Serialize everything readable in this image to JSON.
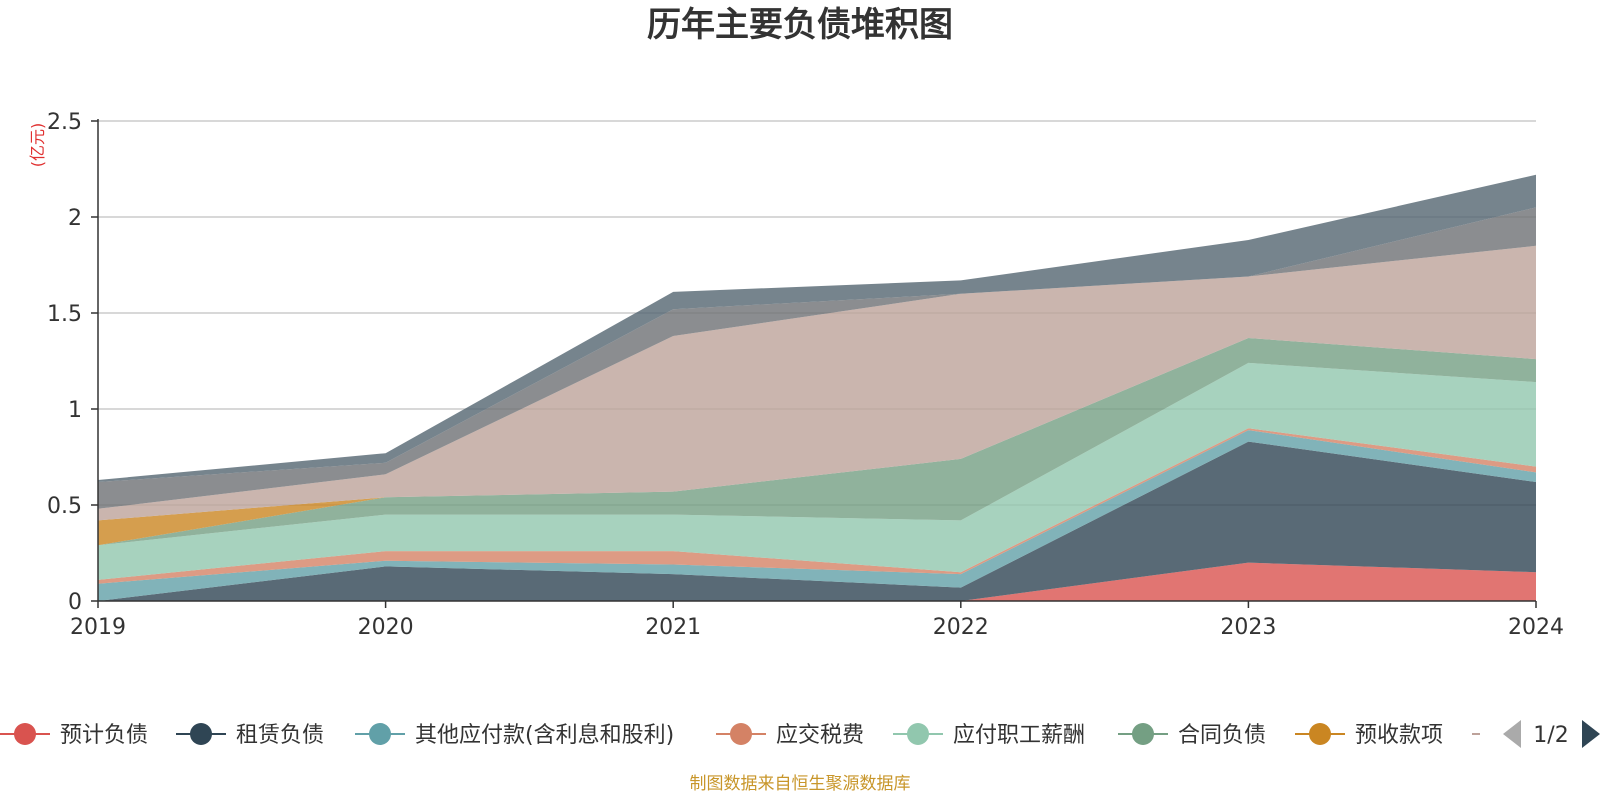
{
  "chart_data": {
    "type": "area",
    "stacked": true,
    "title": "历年主要负债堆积图",
    "unit": "(亿元)",
    "x": [
      "2019",
      "2020",
      "2021",
      "2022",
      "2023",
      "2024"
    ],
    "ylim": [
      0,
      2.5
    ],
    "yticks": [
      "0",
      "0.5",
      "1",
      "1.5",
      "2",
      "2.5"
    ],
    "ytick_values": [
      0,
      0.5,
      1,
      1.5,
      2,
      2.5
    ],
    "grid": true,
    "series": [
      {
        "name": "预计负债",
        "color": "#d9534f",
        "values": [
          0,
          0,
          0,
          0,
          0.2,
          0.15
        ]
      },
      {
        "name": "租赁负债",
        "color": "#2f4554",
        "values": [
          0,
          0.18,
          0.14,
          0.07,
          0.63,
          0.47
        ]
      },
      {
        "name": "其他应付款(含利息和股利)",
        "color": "#61a0a8",
        "values": [
          0.09,
          0.03,
          0.05,
          0.07,
          0.06,
          0.05
        ]
      },
      {
        "name": "应交税费",
        "color": "#d48265",
        "values": [
          0.02,
          0.05,
          0.07,
          0.01,
          0.01,
          0.03
        ]
      },
      {
        "name": "应付职工薪酬",
        "color": "#91c7ae",
        "values": [
          0.18,
          0.19,
          0.19,
          0.27,
          0.34,
          0.44
        ]
      },
      {
        "name": "合同负债",
        "color": "#749f83",
        "values": [
          0,
          0.09,
          0.12,
          0.32,
          0.13,
          0.12
        ]
      },
      {
        "name": "预收款项",
        "color": "#ca8622",
        "values": [
          0.13,
          0,
          0,
          0,
          0,
          0
        ]
      },
      {
        "name": "",
        "color": "#bda29a",
        "values": [
          0.06,
          0.12,
          0.81,
          0.86,
          0.32,
          0.59
        ]
      },
      {
        "name": "",
        "color": "#6e7074",
        "values": [
          0.14,
          0.06,
          0.14,
          0,
          0,
          0.2
        ]
      },
      {
        "name": "",
        "color": "#546570",
        "values": [
          0.01,
          0.05,
          0.09,
          0.07,
          0.19,
          0.17
        ]
      }
    ],
    "legend": {
      "placement": "bottom",
      "visible_count": 7,
      "page": "1/2"
    },
    "source": "制图数据来自恒生聚源数据库"
  }
}
